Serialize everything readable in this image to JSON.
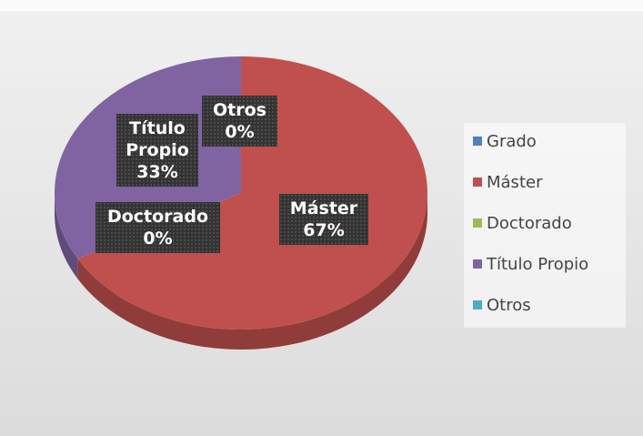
{
  "chart_data": {
    "type": "pie",
    "categories": [
      "Grado",
      "Máster",
      "Doctorado",
      "Título Propio",
      "Otros"
    ],
    "values": [
      0,
      67,
      0,
      33,
      0
    ],
    "value_labels": [
      null,
      "67%",
      "0%",
      "33%",
      "0%"
    ],
    "colors": [
      "#4f81bd",
      "#c0504d",
      "#9bbb59",
      "#8064a2",
      "#4bacc6"
    ],
    "legend": "right"
  }
}
